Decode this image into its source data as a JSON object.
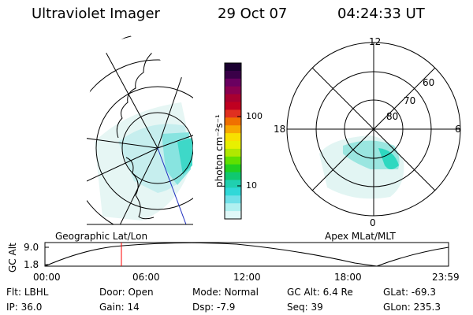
{
  "header": {
    "instrument": "Ultraviolet Imager",
    "date": "29 Oct 07",
    "time": "04:24:33 UT"
  },
  "geo_panel": {
    "label": "Geographic Lat/Lon"
  },
  "colorbar": {
    "unit_label": "photon cm⁻²s⁻¹",
    "ticks": [
      "100",
      "10"
    ],
    "colors": [
      "#1a0030",
      "#3a0048",
      "#6a0060",
      "#8a0050",
      "#a80030",
      "#c00020",
      "#e03020",
      "#f07000",
      "#f8a800",
      "#f8e000",
      "#e8f000",
      "#b0e800",
      "#60e000",
      "#20d020",
      "#10c870",
      "#20d0b0",
      "#30d8d8",
      "#70e0e8",
      "#b0f0f0",
      "#e0f8f8"
    ]
  },
  "polar_panel": {
    "label": "Apex MLat/MLT",
    "mlt_labels": {
      "top": "12",
      "left": "18",
      "right": "6",
      "bottom": "0"
    },
    "lat_labels": [
      "60",
      "70",
      "80"
    ]
  },
  "altitude_plot": {
    "ylabel": "GC Alt",
    "yticks": [
      "9.0",
      "1.8"
    ],
    "xticks": [
      "00:00",
      "06:00",
      "12:00",
      "18:00",
      "23:59"
    ],
    "current_time_marker_color": "#ff0000"
  },
  "footer": {
    "row1": [
      {
        "label": "Flt:",
        "value": "LBHL"
      },
      {
        "label": "Door:",
        "value": "Open"
      },
      {
        "label": "Mode:",
        "value": "Normal"
      },
      {
        "label": "GC Alt:",
        "value": "6.4 Re"
      },
      {
        "label": "GLat:",
        "value": "-69.3"
      }
    ],
    "row2": [
      {
        "label": "IP:",
        "value": "36.0"
      },
      {
        "label": "Gain:",
        "value": "14"
      },
      {
        "label": "Dsp:",
        "value": "-7.9"
      },
      {
        "label": "Seq:",
        "value": "39"
      },
      {
        "label": "GLon:",
        "value": "235.3"
      }
    ]
  }
}
